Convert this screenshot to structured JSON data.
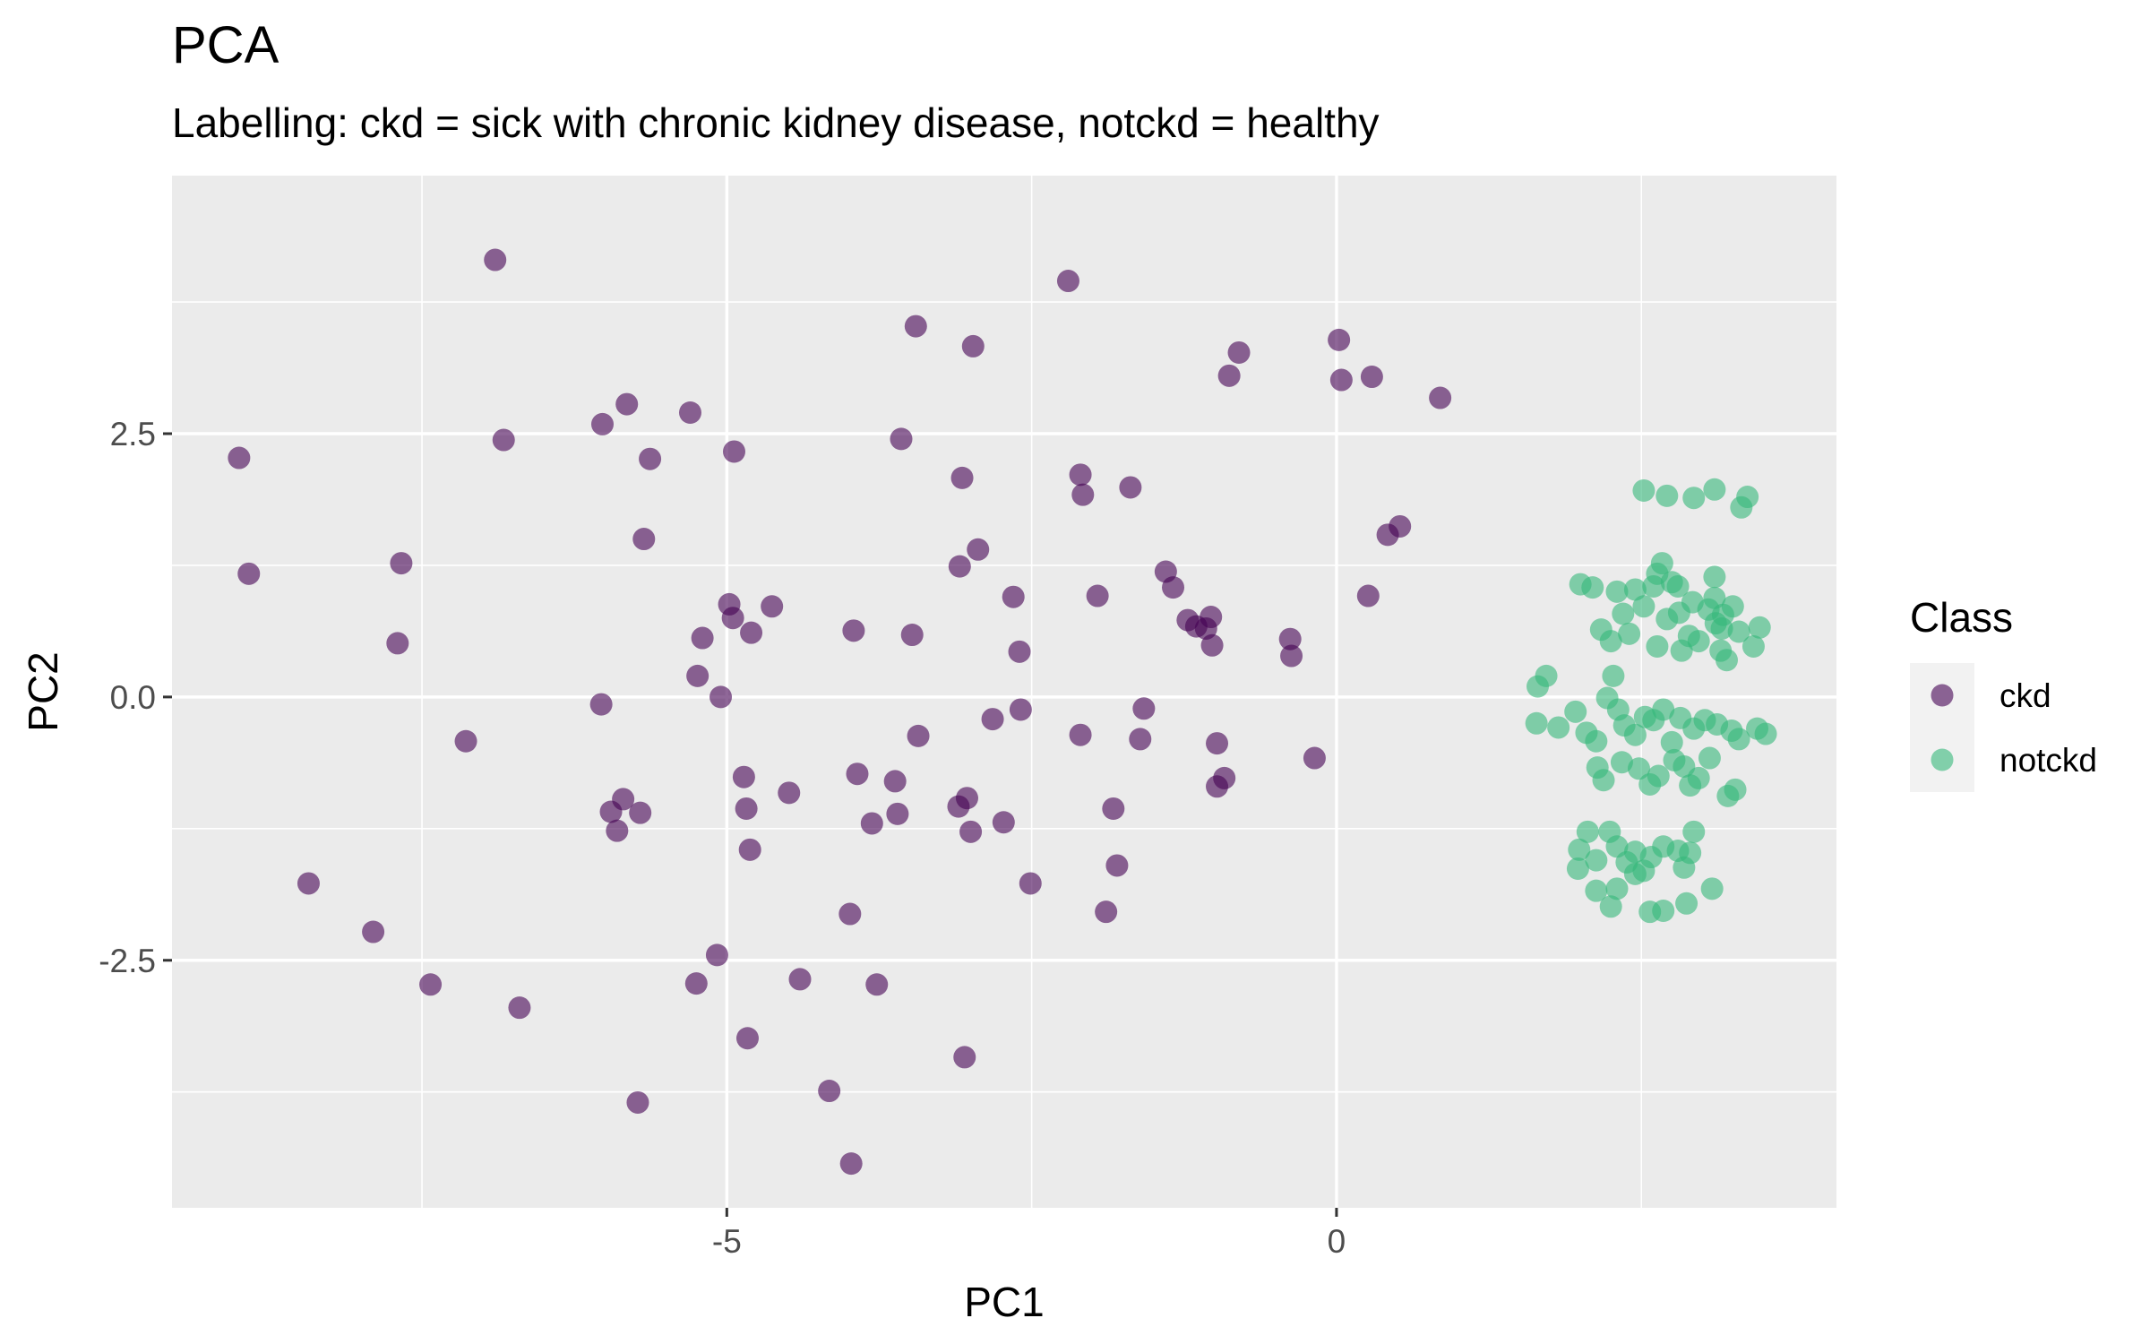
{
  "chart_data": {
    "type": "scatter",
    "title": "PCA",
    "subtitle": "Labelling: ckd = sick with chronic kidney disease, notckd = healthy",
    "xlabel": "PC1",
    "ylabel": "PC2",
    "xlim": [
      -9.55,
      4.1
    ],
    "ylim": [
      -4.85,
      4.95
    ],
    "xticks": [
      {
        "value": -5,
        "label": "-5"
      },
      {
        "value": 0,
        "label": "0"
      }
    ],
    "yticks": [
      {
        "value": 2.5,
        "label": "2.5"
      },
      {
        "value": 0,
        "label": "0.0"
      },
      {
        "value": -2.5,
        "label": "-2.5"
      }
    ],
    "grid": true,
    "legend": {
      "title": "Class",
      "position": "right"
    },
    "series": [
      {
        "name": "ckd",
        "color": "#440154",
        "points": [
          [
            -6.9,
            4.15
          ],
          [
            -2.2,
            3.95
          ],
          [
            -3.45,
            3.52
          ],
          [
            -2.98,
            3.33
          ],
          [
            -0.8,
            3.27
          ],
          [
            0.02,
            3.39
          ],
          [
            -0.88,
            3.05
          ],
          [
            0.04,
            3.01
          ],
          [
            0.29,
            3.04
          ],
          [
            0.85,
            2.84
          ],
          [
            -9.0,
            2.27
          ],
          [
            -6.83,
            2.44
          ],
          [
            -5.82,
            2.78
          ],
          [
            -6.02,
            2.59
          ],
          [
            -5.3,
            2.7
          ],
          [
            -4.94,
            2.33
          ],
          [
            -5.63,
            2.26
          ],
          [
            -3.57,
            2.45
          ],
          [
            -3.07,
            2.08
          ],
          [
            -2.1,
            2.11
          ],
          [
            -2.08,
            1.92
          ],
          [
            -1.69,
            1.99
          ],
          [
            0.42,
            1.54
          ],
          [
            0.52,
            1.62
          ],
          [
            -8.92,
            1.17
          ],
          [
            -7.67,
            1.27
          ],
          [
            -5.68,
            1.5
          ],
          [
            -2.94,
            1.4
          ],
          [
            -3.09,
            1.24
          ],
          [
            -1.4,
            1.19
          ],
          [
            -1.34,
            1.04
          ],
          [
            -2.65,
            0.95
          ],
          [
            -1.96,
            0.96
          ],
          [
            0.26,
            0.96
          ],
          [
            -4.98,
            0.88
          ],
          [
            -4.63,
            0.86
          ],
          [
            -4.95,
            0.75
          ],
          [
            -5.2,
            0.56
          ],
          [
            -4.8,
            0.61
          ],
          [
            -3.96,
            0.63
          ],
          [
            -3.48,
            0.59
          ],
          [
            -1.22,
            0.73
          ],
          [
            -1.15,
            0.67
          ],
          [
            -1.07,
            0.65
          ],
          [
            -1.03,
            0.76
          ],
          [
            -1.02,
            0.49
          ],
          [
            -0.38,
            0.55
          ],
          [
            -0.37,
            0.39
          ],
          [
            -2.6,
            0.43
          ],
          [
            -7.7,
            0.51
          ],
          [
            -5.24,
            0.2
          ],
          [
            -5.05,
            0.0
          ],
          [
            -6.03,
            -0.07
          ],
          [
            -2.59,
            -0.12
          ],
          [
            -1.58,
            -0.11
          ],
          [
            -7.14,
            -0.42
          ],
          [
            -3.43,
            -0.37
          ],
          [
            -2.82,
            -0.21
          ],
          [
            -2.1,
            -0.36
          ],
          [
            -1.61,
            -0.4
          ],
          [
            -0.98,
            -0.44
          ],
          [
            -0.18,
            -0.58
          ],
          [
            -3.93,
            -0.73
          ],
          [
            -4.86,
            -0.76
          ],
          [
            -3.62,
            -0.8
          ],
          [
            -4.49,
            -0.91
          ],
          [
            -3.03,
            -0.96
          ],
          [
            -3.1,
            -1.04
          ],
          [
            -0.92,
            -0.77
          ],
          [
            -0.98,
            -0.85
          ],
          [
            -5.85,
            -0.97
          ],
          [
            -5.95,
            -1.09
          ],
          [
            -5.71,
            -1.1
          ],
          [
            -4.84,
            -1.06
          ],
          [
            -3.6,
            -1.11
          ],
          [
            -3.81,
            -1.2
          ],
          [
            -2.73,
            -1.19
          ],
          [
            -1.83,
            -1.06
          ],
          [
            -5.9,
            -1.27
          ],
          [
            -3.0,
            -1.28
          ],
          [
            -4.81,
            -1.45
          ],
          [
            -1.8,
            -1.6
          ],
          [
            -8.43,
            -1.77
          ],
          [
            -2.51,
            -1.77
          ],
          [
            -1.89,
            -2.04
          ],
          [
            -3.99,
            -2.06
          ],
          [
            -7.9,
            -2.23
          ],
          [
            -5.08,
            -2.45
          ],
          [
            -7.43,
            -2.73
          ],
          [
            -6.7,
            -2.95
          ],
          [
            -5.25,
            -2.72
          ],
          [
            -4.4,
            -2.68
          ],
          [
            -3.77,
            -2.73
          ],
          [
            -4.83,
            -3.24
          ],
          [
            -3.05,
            -3.42
          ],
          [
            -5.73,
            -3.85
          ],
          [
            -4.16,
            -3.74
          ],
          [
            -3.98,
            -4.43
          ]
        ]
      },
      {
        "name": "notckd",
        "color": "#35b779",
        "points": [
          [
            2.52,
            1.96
          ],
          [
            2.71,
            1.91
          ],
          [
            2.93,
            1.89
          ],
          [
            3.1,
            1.97
          ],
          [
            3.32,
            1.8
          ],
          [
            3.37,
            1.9
          ],
          [
            2.63,
            1.17
          ],
          [
            2.67,
            1.27
          ],
          [
            3.1,
            1.14
          ],
          [
            2.0,
            1.07
          ],
          [
            2.1,
            1.04
          ],
          [
            2.3,
            1.0
          ],
          [
            2.45,
            1.02
          ],
          [
            2.6,
            1.05
          ],
          [
            2.75,
            1.09
          ],
          [
            2.8,
            1.05
          ],
          [
            2.35,
            0.79
          ],
          [
            2.52,
            0.86
          ],
          [
            2.71,
            0.74
          ],
          [
            2.81,
            0.8
          ],
          [
            2.92,
            0.9
          ],
          [
            3.05,
            0.83
          ],
          [
            3.1,
            0.94
          ],
          [
            3.17,
            0.78
          ],
          [
            3.25,
            0.86
          ],
          [
            3.11,
            0.7
          ],
          [
            3.16,
            0.65
          ],
          [
            3.3,
            0.62
          ],
          [
            3.47,
            0.66
          ],
          [
            2.17,
            0.64
          ],
          [
            2.25,
            0.53
          ],
          [
            2.4,
            0.6
          ],
          [
            2.63,
            0.48
          ],
          [
            2.83,
            0.44
          ],
          [
            2.97,
            0.53
          ],
          [
            2.89,
            0.58
          ],
          [
            3.15,
            0.44
          ],
          [
            3.2,
            0.35
          ],
          [
            3.42,
            0.48
          ],
          [
            1.65,
            0.1
          ],
          [
            1.72,
            0.2
          ],
          [
            2.27,
            0.2
          ],
          [
            1.64,
            -0.25
          ],
          [
            1.82,
            -0.29
          ],
          [
            1.96,
            -0.14
          ],
          [
            2.05,
            -0.34
          ],
          [
            2.13,
            -0.42
          ],
          [
            2.22,
            -0.01
          ],
          [
            2.31,
            -0.12
          ],
          [
            2.36,
            -0.27
          ],
          [
            2.45,
            -0.36
          ],
          [
            2.53,
            -0.19
          ],
          [
            2.6,
            -0.22
          ],
          [
            2.68,
            -0.12
          ],
          [
            2.75,
            -0.43
          ],
          [
            2.82,
            -0.2
          ],
          [
            2.93,
            -0.3
          ],
          [
            3.02,
            -0.22
          ],
          [
            3.12,
            -0.26
          ],
          [
            3.24,
            -0.32
          ],
          [
            3.3,
            -0.4
          ],
          [
            3.45,
            -0.3
          ],
          [
            3.52,
            -0.35
          ],
          [
            2.14,
            -0.67
          ],
          [
            2.19,
            -0.79
          ],
          [
            2.34,
            -0.62
          ],
          [
            2.48,
            -0.68
          ],
          [
            2.57,
            -0.83
          ],
          [
            2.64,
            -0.75
          ],
          [
            2.77,
            -0.6
          ],
          [
            2.85,
            -0.66
          ],
          [
            2.9,
            -0.84
          ],
          [
            2.97,
            -0.77
          ],
          [
            3.06,
            -0.58
          ],
          [
            3.21,
            -0.94
          ],
          [
            3.27,
            -0.88
          ],
          [
            2.06,
            -1.28
          ],
          [
            1.99,
            -1.45
          ],
          [
            2.13,
            -1.55
          ],
          [
            2.24,
            -1.28
          ],
          [
            2.3,
            -1.42
          ],
          [
            2.38,
            -1.57
          ],
          [
            2.45,
            -1.47
          ],
          [
            2.58,
            -1.52
          ],
          [
            2.68,
            -1.42
          ],
          [
            2.8,
            -1.46
          ],
          [
            2.93,
            -1.28
          ],
          [
            2.9,
            -1.48
          ],
          [
            1.98,
            -1.63
          ],
          [
            2.45,
            -1.68
          ],
          [
            2.3,
            -1.82
          ],
          [
            2.52,
            -1.65
          ],
          [
            2.85,
            -1.62
          ],
          [
            2.13,
            -1.84
          ],
          [
            2.25,
            -1.99
          ],
          [
            2.57,
            -2.04
          ],
          [
            2.87,
            -1.96
          ],
          [
            3.08,
            -1.82
          ],
          [
            2.68,
            -2.03
          ]
        ]
      }
    ]
  }
}
